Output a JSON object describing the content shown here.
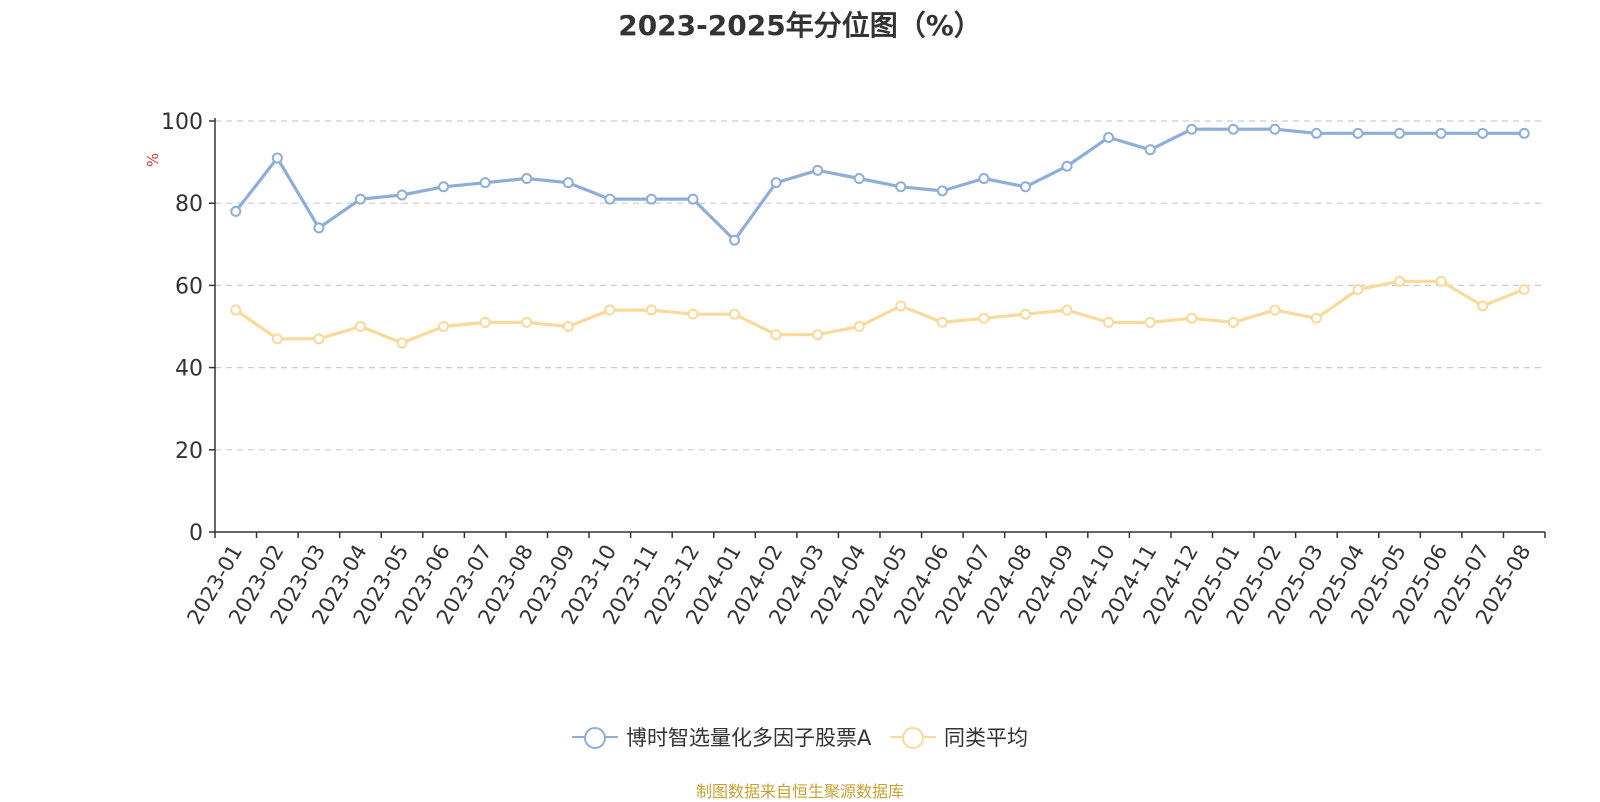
{
  "chart_data": {
    "type": "line",
    "title": "2023-2025年分位图（%）",
    "ylabel": "%",
    "ylim": [
      0,
      100
    ],
    "yticks": [
      0,
      20,
      40,
      60,
      80,
      100
    ],
    "grid": true,
    "legend_position": "bottom",
    "categories": [
      "2023-01",
      "2023-02",
      "2023-03",
      "2023-04",
      "2023-05",
      "2023-06",
      "2023-07",
      "2023-08",
      "2023-09",
      "2023-10",
      "2023-11",
      "2023-12",
      "2024-01",
      "2024-02",
      "2024-03",
      "2024-04",
      "2024-05",
      "2024-06",
      "2024-07",
      "2024-08",
      "2024-09",
      "2024-10",
      "2024-11",
      "2024-12",
      "2025-01",
      "2025-02",
      "2025-03",
      "2025-04",
      "2025-05",
      "2025-06",
      "2025-07",
      "2025-08"
    ],
    "series": [
      {
        "name": "博时智选量化多因子股票A",
        "color": "#8eaed9",
        "values": [
          78,
          91,
          74,
          81,
          82,
          84,
          85,
          86,
          85,
          81,
          81,
          81,
          71,
          85,
          88,
          86,
          84,
          83,
          86,
          84,
          89,
          96,
          93,
          98,
          98,
          98,
          97,
          97,
          97,
          97,
          97,
          97
        ]
      },
      {
        "name": "同类平均",
        "color": "#fad99a",
        "values": [
          54,
          47,
          47,
          50,
          46,
          50,
          51,
          51,
          50,
          54,
          54,
          53,
          53,
          48,
          48,
          50,
          55,
          51,
          52,
          53,
          54,
          51,
          51,
          52,
          51,
          54,
          52,
          59,
          61,
          61,
          55,
          59
        ]
      }
    ],
    "source": "制图数据来自恒生聚源数据库"
  }
}
